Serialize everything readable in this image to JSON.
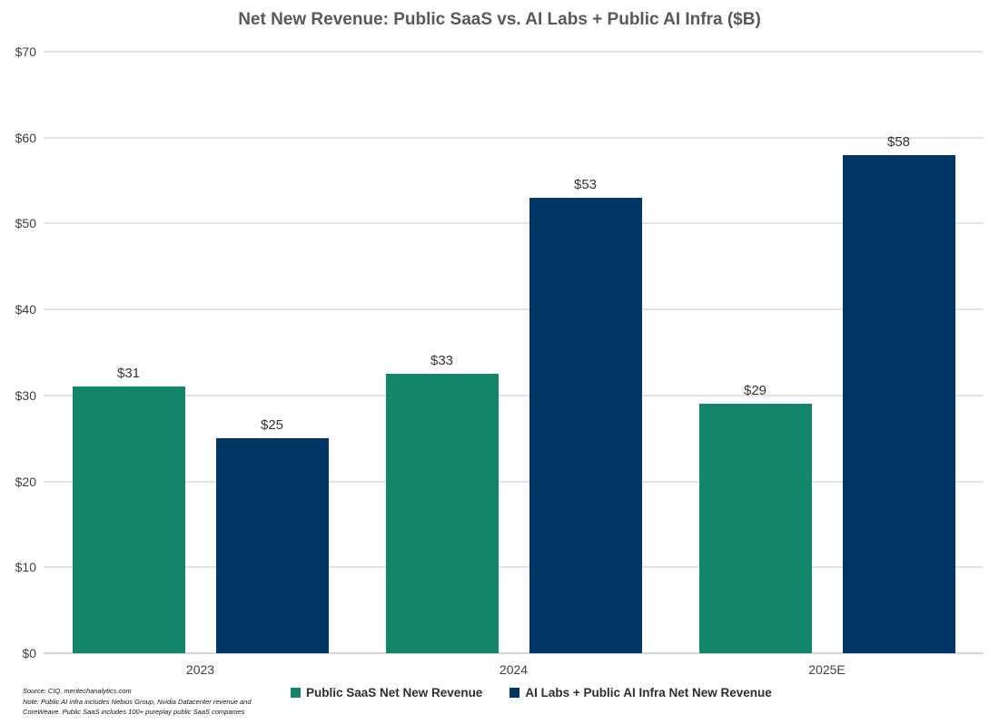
{
  "title": "Net New Revenue: Public SaaS vs. AI Labs + Public AI Infra ($B)",
  "footnote": {
    "line1": "Source: CIQ, meritechanalytics.com",
    "line2": "Note: Public AI infra includes Nebius Group, Nvidia Datacenter revenue and",
    "line3": "CoreWeave. Public SaaS includes 100+ pureplay public SaaS companies"
  },
  "chart_data": {
    "type": "bar",
    "title": "Net New Revenue: Public SaaS vs. AI Labs + Public AI Infra ($B)",
    "categories": [
      "2023",
      "2024",
      "2025E"
    ],
    "series": [
      {
        "name": "Public SaaS Net New Revenue",
        "color": "#12856B",
        "values": [
          31,
          33,
          29
        ],
        "plotted": [
          31,
          32.5,
          29
        ],
        "labels": [
          "$31",
          "$33",
          "$29"
        ]
      },
      {
        "name": "AI Labs + Public AI Infra Net New Revenue",
        "color": "#003666",
        "values": [
          25,
          53,
          58
        ],
        "plotted": [
          25,
          53,
          58
        ],
        "labels": [
          "$25",
          "$53",
          "$58"
        ]
      }
    ],
    "xlabel": "",
    "ylabel": "",
    "ylim": [
      0,
      70
    ],
    "yticks": [
      "$0",
      "$10",
      "$20",
      "$30",
      "$40",
      "$50",
      "$60",
      "$70"
    ],
    "grid": true,
    "legend_position": "bottom"
  }
}
